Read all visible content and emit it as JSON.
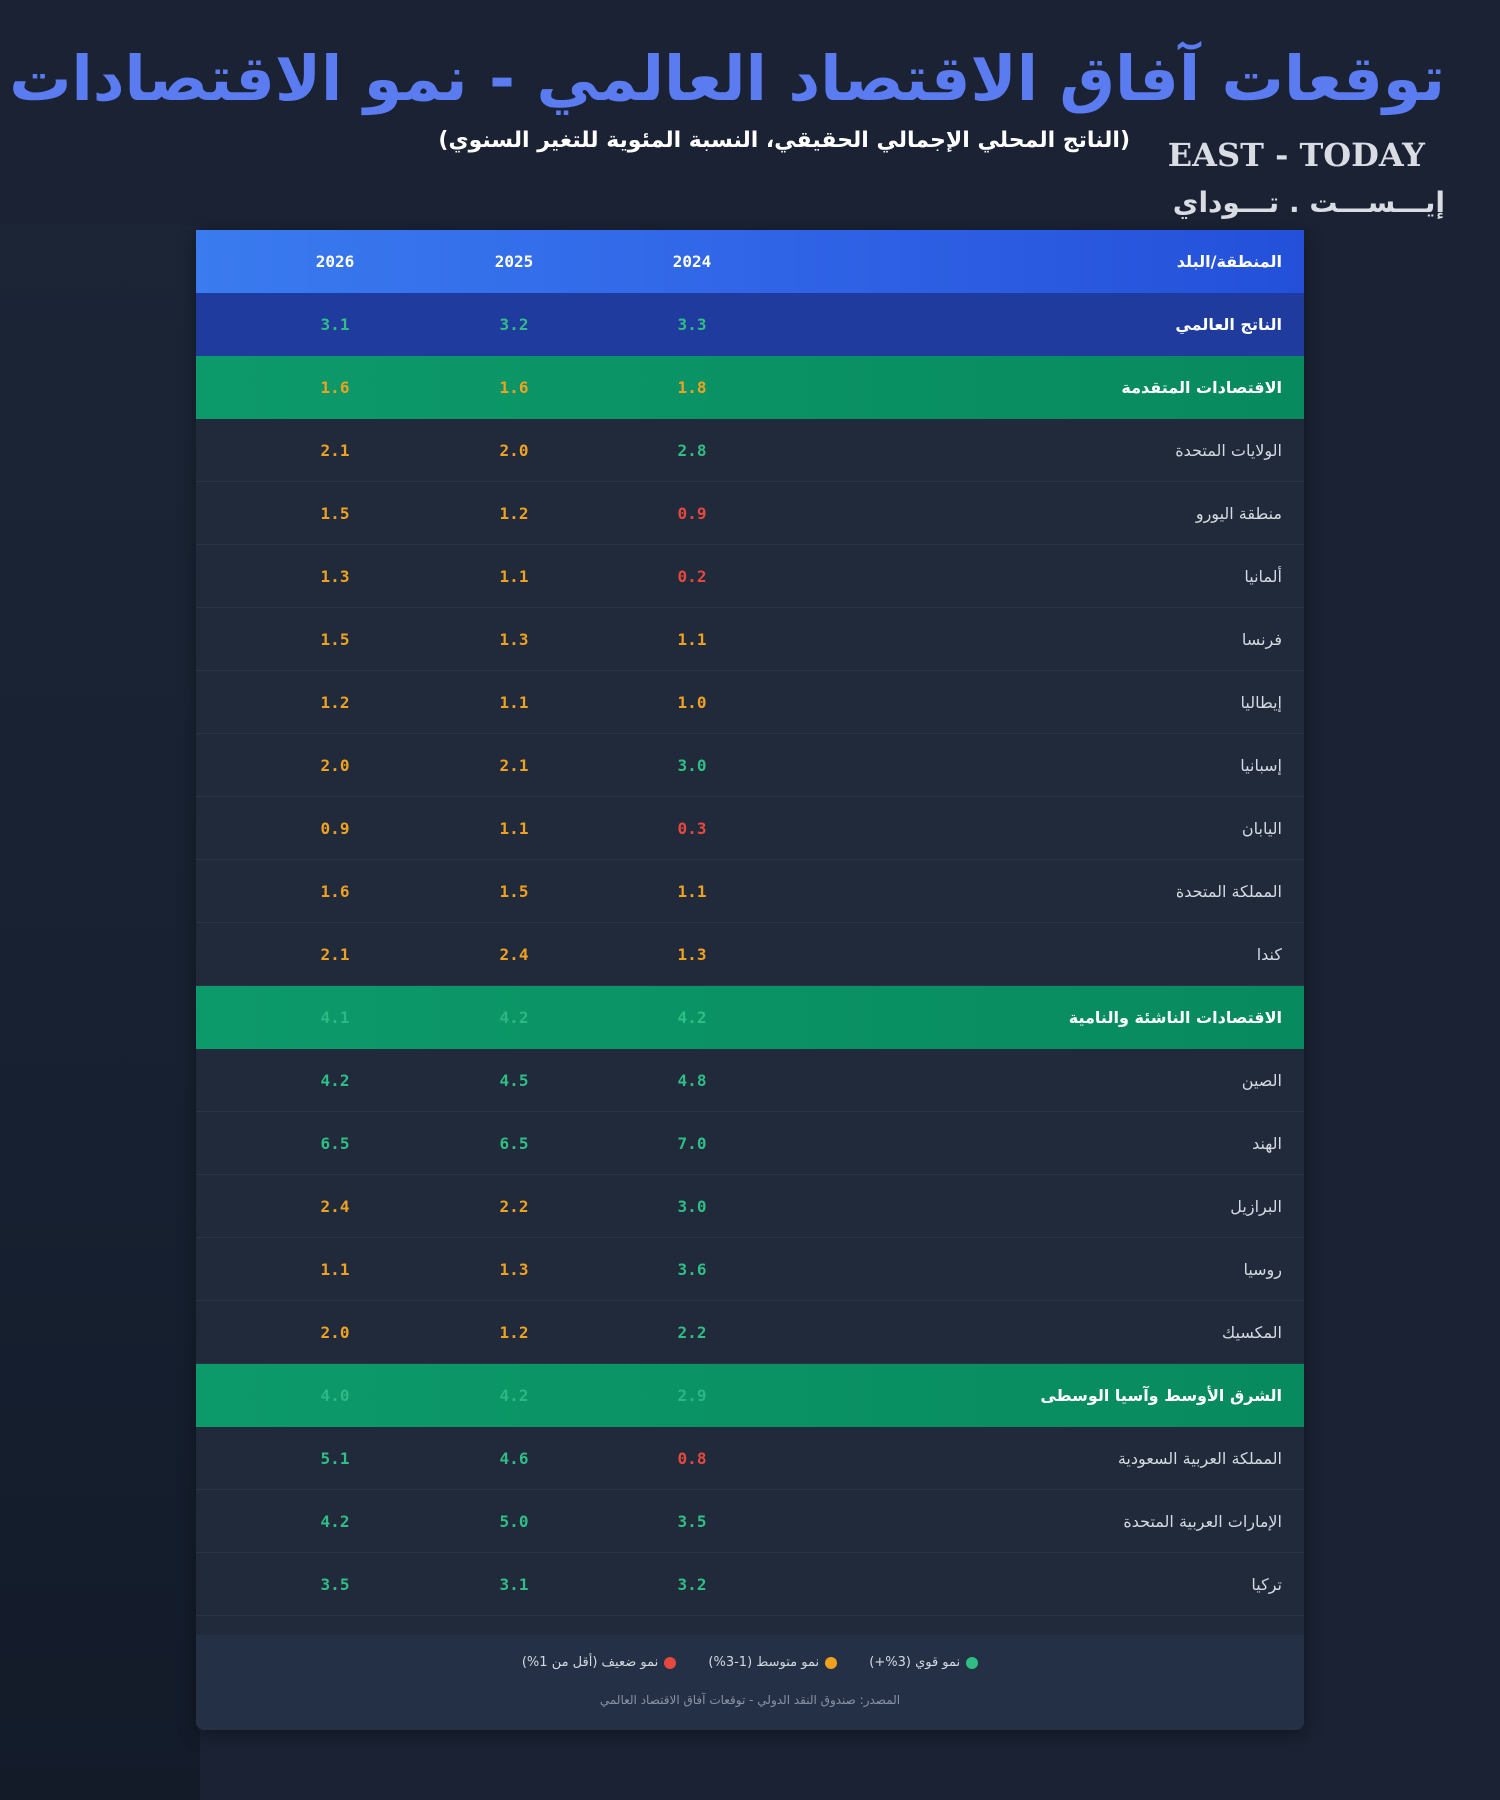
{
  "header": {
    "title": "توقعات آفاق الاقتصاد العالمي - نمو الاقتصادات",
    "subtitle": "(الناتج المحلي الإجمالي الحقيقي، النسبة المئوية للتغير السنوي)",
    "logo_en": "EAST - TODAY",
    "logo_ar": "إيـــســـت . تـــوداي"
  },
  "table": {
    "columns": {
      "name": "المنطقة/البلد",
      "y2024": "2024",
      "y2025": "2025",
      "y2026": "2026"
    },
    "rows": [
      {
        "name": "الناتج العالمي",
        "y2024": "3.3",
        "y2025": "3.2",
        "y2026": "3.1"
      },
      {
        "name": "الاقتصادات المتقدمة",
        "y2024": "1.8",
        "y2025": "1.6",
        "y2026": "1.6"
      },
      {
        "name": "الولايات المتحدة",
        "y2024": "2.8",
        "y2025": "2.0",
        "y2026": "2.1"
      },
      {
        "name": "منطقة اليورو",
        "y2024": "0.9",
        "y2025": "1.2",
        "y2026": "1.5"
      },
      {
        "name": "ألمانيا",
        "y2024": "0.2",
        "y2025": "1.1",
        "y2026": "1.3"
      },
      {
        "name": "فرنسا",
        "y2024": "1.1",
        "y2025": "1.3",
        "y2026": "1.5"
      },
      {
        "name": "إيطاليا",
        "y2024": "1.0",
        "y2025": "1.1",
        "y2026": "1.2"
      },
      {
        "name": "إسبانيا",
        "y2024": "3.0",
        "y2025": "2.1",
        "y2026": "2.0"
      },
      {
        "name": "اليابان",
        "y2024": "0.3",
        "y2025": "1.1",
        "y2026": "0.9"
      },
      {
        "name": "المملكة المتحدة",
        "y2024": "1.1",
        "y2025": "1.5",
        "y2026": "1.6"
      },
      {
        "name": "كندا",
        "y2024": "1.3",
        "y2025": "2.4",
        "y2026": "2.1"
      },
      {
        "name": "الاقتصادات الناشئة والنامية",
        "y2024": "4.2",
        "y2025": "4.2",
        "y2026": "4.1"
      },
      {
        "name": "الصين",
        "y2024": "4.8",
        "y2025": "4.5",
        "y2026": "4.2"
      },
      {
        "name": "الهند",
        "y2024": "7.0",
        "y2025": "6.5",
        "y2026": "6.5"
      },
      {
        "name": "البرازيل",
        "y2024": "3.0",
        "y2025": "2.2",
        "y2026": "2.4"
      },
      {
        "name": "روسيا",
        "y2024": "3.6",
        "y2025": "1.3",
        "y2026": "1.1"
      },
      {
        "name": "المكسيك",
        "y2024": "2.2",
        "y2025": "1.2",
        "y2026": "2.0"
      },
      {
        "name": "الشرق الأوسط وآسيا الوسطى",
        "y2024": "2.9",
        "y2025": "4.2",
        "y2026": "4.0"
      },
      {
        "name": "المملكة العربية السعودية",
        "y2024": "0.8",
        "y2025": "4.6",
        "y2026": "5.1"
      },
      {
        "name": "الإمارات العربية المتحدة",
        "y2024": "3.5",
        "y2025": "5.0",
        "y2026": "4.2"
      },
      {
        "name": "تركيا",
        "y2024": "3.2",
        "y2025": "3.1",
        "y2026": "3.5"
      }
    ]
  },
  "legend": {
    "strong": "نمو قوي (3%+)",
    "moderate": "نمو متوسط (1-3%)",
    "weak": "نمو ضعيف (أقل من 1%)",
    "source": "المصدر: صندوق النقد الدولي - توقعات آفاق الاقتصاد العالمي"
  },
  "colors": {
    "strong": "#2fbf85",
    "moderate": "#f0a21f",
    "weak": "#e5483f",
    "title": "#5b7cf0",
    "header_row": "#2f63e6",
    "world_row": "#1f3b9e",
    "group_row": "#078a5e"
  }
}
